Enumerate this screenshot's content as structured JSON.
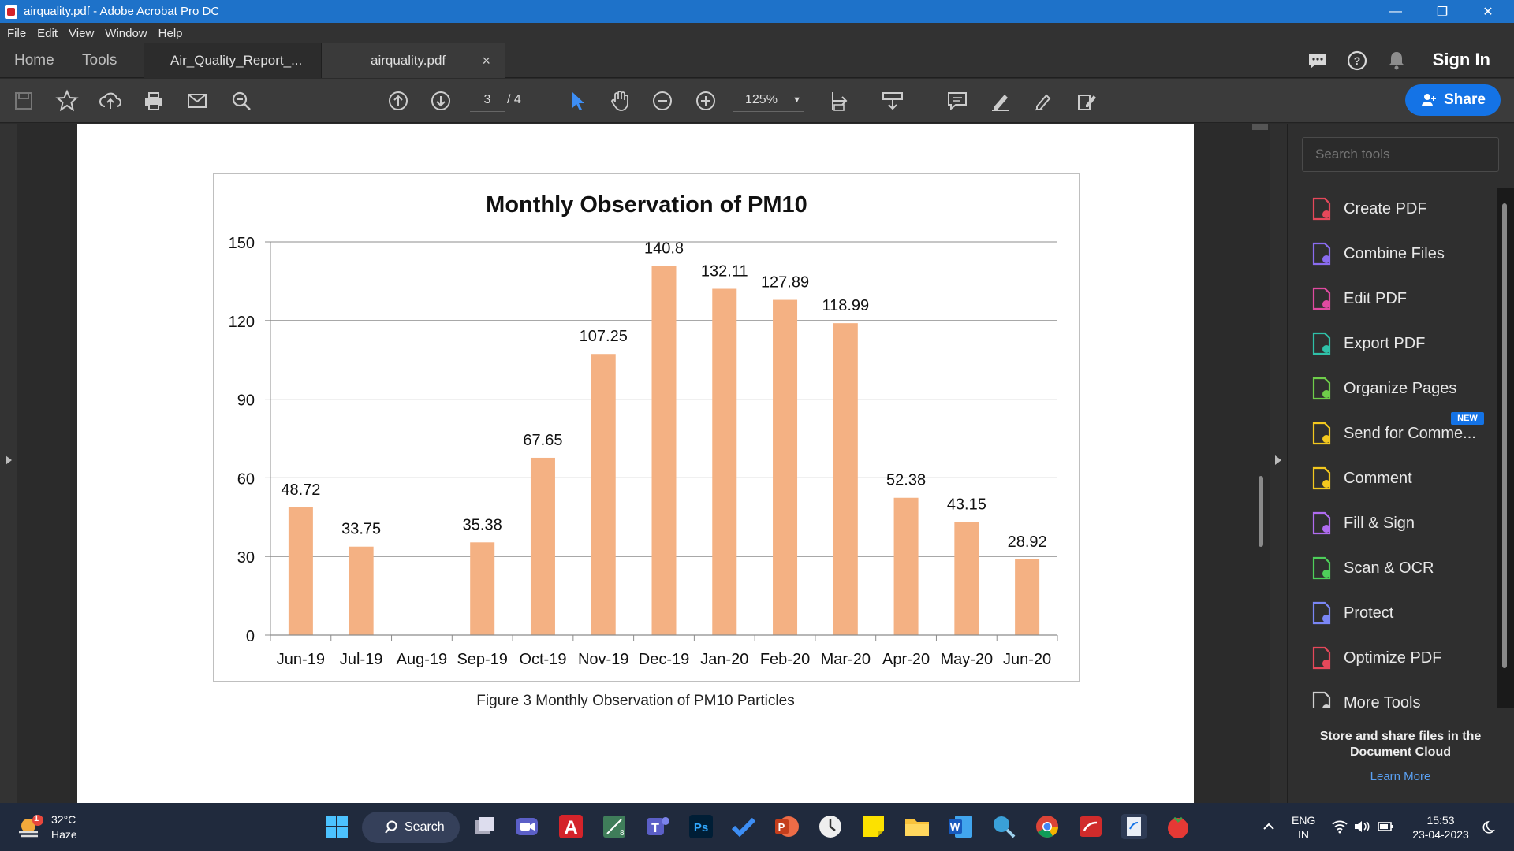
{
  "window": {
    "title": "airquality.pdf - Adobe Acrobat Pro DC",
    "controls": [
      "—",
      "❐",
      "✕"
    ]
  },
  "menu": [
    "File",
    "Edit",
    "View",
    "Window",
    "Help"
  ],
  "nav": {
    "home": "Home",
    "tools": "Tools",
    "tabs": [
      {
        "label": "Air_Quality_Report_...",
        "active": false
      },
      {
        "label": "airquality.pdf",
        "active": true,
        "close": "×"
      }
    ],
    "sign_in": "Sign In"
  },
  "toolbar": {
    "current_page": "3",
    "page_total": "/ 4",
    "zoom": "125%",
    "share_label": "Share",
    "icons": [
      "save-icon",
      "bookmark-star-icon",
      "upload-cloud-icon",
      "print-icon",
      "email-icon",
      "search-zoom-icon",
      "page-up-icon",
      "page-down-icon",
      "select-arrow-icon",
      "hand-icon",
      "zoom-out-icon",
      "zoom-in-icon",
      "page-fit-icon",
      "scroll-mode-icon",
      "comment-icon",
      "highlight-icon",
      "sign-icon",
      "edit-icon"
    ]
  },
  "chart_data": {
    "type": "bar",
    "title": "Monthly Observation of PM10",
    "categories": [
      "Jun-19",
      "Jul-19",
      "Aug-19",
      "Sep-19",
      "Oct-19",
      "Nov-19",
      "Dec-19",
      "Jan-20",
      "Feb-20",
      "Mar-20",
      "Apr-20",
      "May-20",
      "Jun-20"
    ],
    "values": [
      48.72,
      33.75,
      null,
      35.38,
      67.65,
      107.25,
      140.8,
      132.11,
      127.89,
      118.99,
      52.38,
      43.15,
      28.92
    ],
    "value_labels": [
      "48.72",
      "33.75",
      "",
      "35.38",
      "67.65",
      "107.25",
      "140.8",
      "132.11",
      "127.89",
      "118.99",
      "52.38",
      "43.15",
      "28.92"
    ],
    "y_ticks": [
      "0",
      "30",
      "60",
      "90",
      "120",
      "150"
    ],
    "ylim": [
      0,
      150
    ],
    "xlabel": "",
    "ylabel": "",
    "grid": true,
    "bar_color": "#f4b183"
  },
  "caption": "Figure 3 Monthly Observation of PM10 Particles",
  "tools_pane": {
    "search_placeholder": "Search tools",
    "items": [
      {
        "label": "Create PDF",
        "icon": "create-pdf-icon",
        "color": "#e5485a"
      },
      {
        "label": "Combine Files",
        "icon": "combine-files-icon",
        "color": "#8a6cf0"
      },
      {
        "label": "Edit PDF",
        "icon": "edit-pdf-icon",
        "color": "#e04aa0"
      },
      {
        "label": "Export PDF",
        "icon": "export-pdf-icon",
        "color": "#2fc0a8"
      },
      {
        "label": "Organize Pages",
        "icon": "organize-pages-icon",
        "color": "#6fce4a"
      },
      {
        "label": "Send for Comme...",
        "icon": "send-for-comment-icon",
        "color": "#f3c81e"
      },
      {
        "label": "Comment",
        "icon": "comment-tool-icon",
        "color": "#f3c81e"
      },
      {
        "label": "Fill & Sign",
        "icon": "fill-sign-icon",
        "color": "#b06cf0"
      },
      {
        "label": "Scan & OCR",
        "icon": "scan-ocr-icon",
        "color": "#4ecf5a"
      },
      {
        "label": "Protect",
        "icon": "protect-icon",
        "color": "#7a86f5"
      },
      {
        "label": "Optimize PDF",
        "icon": "optimize-pdf-icon",
        "color": "#e5485a"
      },
      {
        "label": "More Tools",
        "icon": "more-tools-icon",
        "color": "#cfcfcf"
      }
    ],
    "new_badge": "NEW",
    "cloud_text": "Store and share files in the Document Cloud",
    "learn_more": "Learn More"
  },
  "taskbar": {
    "weather_temp": "32°C",
    "weather_desc": "Haze",
    "weather_badge": "1",
    "search_label": "Search",
    "lang_top": "ENG",
    "lang_bottom": "IN",
    "time": "15:53",
    "date": "23-04-2023"
  }
}
